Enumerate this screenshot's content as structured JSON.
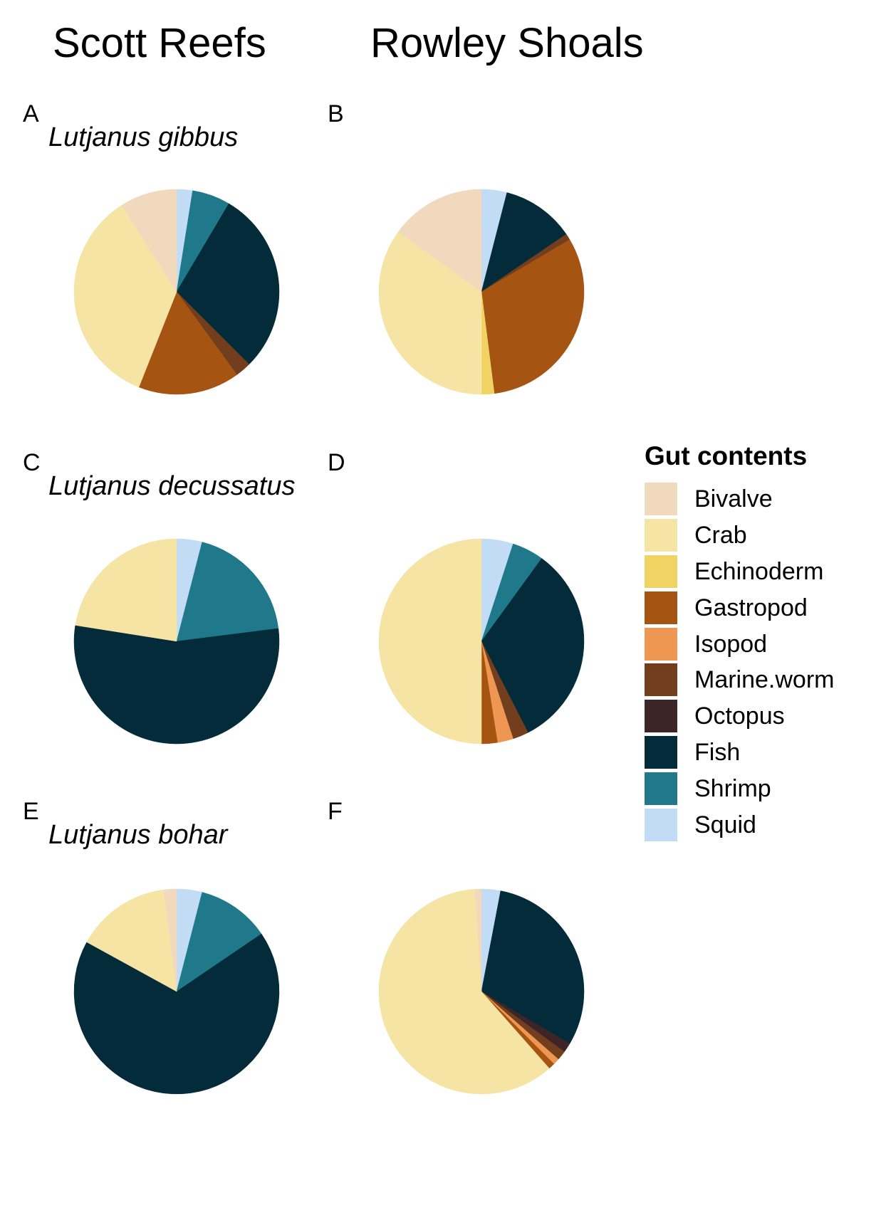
{
  "header": {
    "left": "Scott Reefs",
    "right": "Rowley Shoals"
  },
  "rows": [
    {
      "species": "Lutjanus gibbus"
    },
    {
      "species": "Lutjanus decussatus"
    },
    {
      "species": "Lutjanus bohar"
    }
  ],
  "legend": {
    "title": "Gut contents",
    "items": [
      {
        "label": "Bivalve",
        "color": "#F0D9BD"
      },
      {
        "label": "Crab",
        "color": "#F5E4A3"
      },
      {
        "label": "Echinoderm",
        "color": "#F0D362"
      },
      {
        "label": "Gastropod",
        "color": "#A55412"
      },
      {
        "label": "Isopod",
        "color": "#EE9752"
      },
      {
        "label": "Marine.worm",
        "color": "#723E1E"
      },
      {
        "label": "Octopus",
        "color": "#3C2427"
      },
      {
        "label": "Fish",
        "color": "#032B3A"
      },
      {
        "label": "Shrimp",
        "color": "#1F798A"
      },
      {
        "label": "Squid",
        "color": "#C3DCF6"
      }
    ]
  },
  "chart_data": [
    {
      "type": "pie",
      "panel": "A",
      "species": "Lutjanus gibbus",
      "site": "Scott Reefs",
      "slices": [
        {
          "label": "Squid",
          "value": 2.5
        },
        {
          "label": "Shrimp",
          "value": 6
        },
        {
          "label": "Fish",
          "value": 29
        },
        {
          "label": "Marine.worm",
          "value": 2.5
        },
        {
          "label": "Gastropod",
          "value": 16
        },
        {
          "label": "Crab",
          "value": 35
        },
        {
          "label": "Bivalve",
          "value": 9
        }
      ]
    },
    {
      "type": "pie",
      "panel": "B",
      "species": "Lutjanus gibbus",
      "site": "Rowley Shoals",
      "slices": [
        {
          "label": "Squid",
          "value": 4
        },
        {
          "label": "Fish",
          "value": 11.5
        },
        {
          "label": "Marine.worm",
          "value": 1
        },
        {
          "label": "Gastropod",
          "value": 31.5
        },
        {
          "label": "Echinoderm",
          "value": 2
        },
        {
          "label": "Crab",
          "value": 35
        },
        {
          "label": "Bivalve",
          "value": 15
        }
      ]
    },
    {
      "type": "pie",
      "panel": "C",
      "species": "Lutjanus decussatus",
      "site": "Scott Reefs",
      "slices": [
        {
          "label": "Squid",
          "value": 4
        },
        {
          "label": "Shrimp",
          "value": 19
        },
        {
          "label": "Fish",
          "value": 54.5
        },
        {
          "label": "Crab",
          "value": 22.5
        }
      ]
    },
    {
      "type": "pie",
      "panel": "D",
      "species": "Lutjanus decussatus",
      "site": "Rowley Shoals",
      "slices": [
        {
          "label": "Squid",
          "value": 5
        },
        {
          "label": "Shrimp",
          "value": 5
        },
        {
          "label": "Fish",
          "value": 32.5
        },
        {
          "label": "Marine.worm",
          "value": 2.5
        },
        {
          "label": "Isopod",
          "value": 2.5
        },
        {
          "label": "Gastropod",
          "value": 2.5
        },
        {
          "label": "Crab",
          "value": 50
        }
      ]
    },
    {
      "type": "pie",
      "panel": "E",
      "species": "Lutjanus bohar",
      "site": "Scott Reefs",
      "slices": [
        {
          "label": "Squid",
          "value": 4
        },
        {
          "label": "Shrimp",
          "value": 11.5
        },
        {
          "label": "Fish",
          "value": 67.5
        },
        {
          "label": "Crab",
          "value": 15
        },
        {
          "label": "Bivalve",
          "value": 2
        }
      ]
    },
    {
      "type": "pie",
      "panel": "F",
      "species": "Lutjanus bohar",
      "site": "Rowley Shoals",
      "slices": [
        {
          "label": "Squid",
          "value": 3
        },
        {
          "label": "Fish",
          "value": 30.5
        },
        {
          "label": "Octopus",
          "value": 1.5
        },
        {
          "label": "Marine.worm",
          "value": 1.5
        },
        {
          "label": "Isopod",
          "value": 1
        },
        {
          "label": "Gastropod",
          "value": 1
        },
        {
          "label": "Crab",
          "value": 60.5
        },
        {
          "label": "Bivalve",
          "value": 1
        }
      ]
    }
  ]
}
